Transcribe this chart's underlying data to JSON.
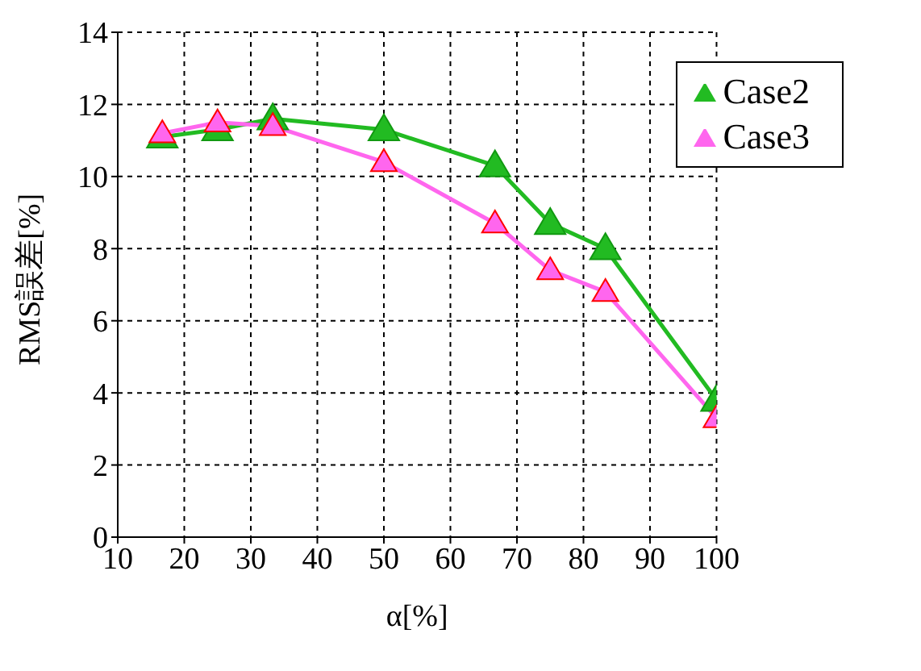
{
  "chart_data": {
    "type": "line",
    "xlabel": "α[%]",
    "ylabel": "RMS誤差[%]",
    "x": [
      16.7,
      25,
      33.3,
      50,
      66.7,
      75,
      83.3,
      100
    ],
    "series": [
      {
        "name": "Case2",
        "color": "#22bb22",
        "values": [
          11.1,
          11.3,
          11.6,
          11.3,
          10.3,
          8.7,
          8.0,
          3.8
        ]
      },
      {
        "name": "Case3",
        "color": "#ff66ee",
        "values": [
          11.2,
          11.5,
          11.4,
          10.4,
          8.7,
          7.4,
          6.8,
          3.3
        ]
      }
    ],
    "xlim": [
      10,
      100
    ],
    "xticks": [
      10,
      20,
      30,
      40,
      50,
      60,
      70,
      80,
      90,
      100
    ],
    "ylim": [
      0,
      14
    ],
    "yticks": [
      0,
      2,
      4,
      6,
      8,
      10,
      12,
      14
    ],
    "grid": true,
    "legend": "top right",
    "marker": "triangle",
    "line_style": "solid"
  }
}
